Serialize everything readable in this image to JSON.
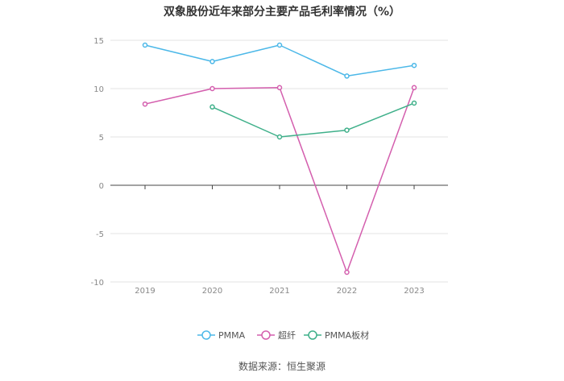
{
  "chart_data": {
    "type": "line",
    "title": "双象股份近年来部分主要产品毛利率情况（%）",
    "source": "数据来源：恒生聚源",
    "xlabel": "",
    "ylabel": "",
    "categories": [
      "2019",
      "2020",
      "2021",
      "2022",
      "2023"
    ],
    "ylim": [
      -10,
      15
    ],
    "yticks": [
      15,
      10,
      5,
      0,
      -5,
      -10
    ],
    "yticklabels": [
      "15",
      "10",
      "5",
      "0",
      "-5",
      "-10"
    ],
    "grid": true,
    "legend_position": "bottom",
    "series": [
      {
        "name": "PMMA",
        "color": "#4cb8e8",
        "values": [
          14.5,
          12.8,
          14.5,
          11.3,
          12.4
        ]
      },
      {
        "name": "超纤",
        "color": "#d45fae",
        "values": [
          8.4,
          10.0,
          10.1,
          -9.0,
          10.1
        ]
      },
      {
        "name": "PMMA板材",
        "color": "#3fb08a",
        "values": [
          null,
          8.1,
          5.0,
          5.7,
          8.5
        ]
      }
    ]
  }
}
